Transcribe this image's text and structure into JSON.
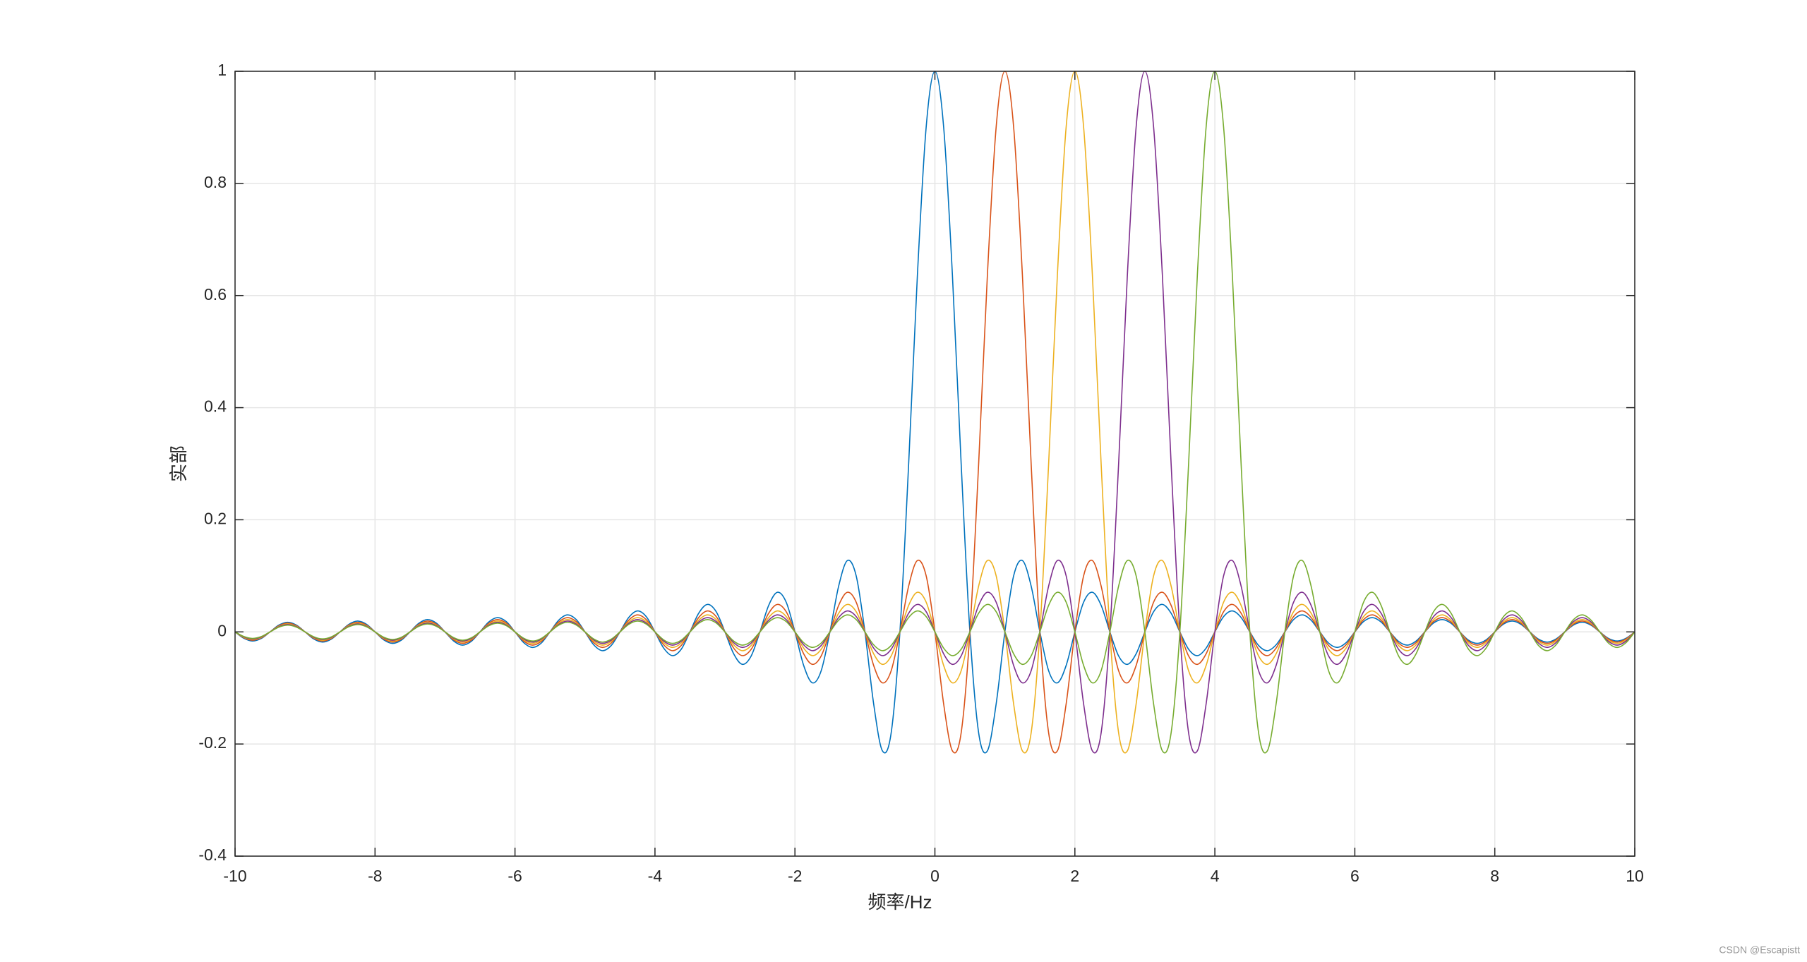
{
  "chart_data": {
    "type": "line",
    "x_label": "频率/Hz",
    "y_label": "实部",
    "watermark": "CSDN @Escapistt",
    "xlim": [
      -10,
      10
    ],
    "ylim": [
      -0.4,
      1
    ],
    "xticks": [
      -10,
      -8,
      -6,
      -4,
      -2,
      0,
      2,
      4,
      6,
      8,
      10
    ],
    "yticks": [
      -0.4,
      -0.2,
      0,
      0.2,
      0.4,
      0.6,
      0.8,
      1
    ],
    "grid": true,
    "box": true,
    "x": [
      -10,
      -9.875,
      -9.75,
      -9.625,
      -9.5,
      -9.375,
      -9.25,
      -9.125,
      -9,
      -8.875,
      -8.75,
      -8.625,
      -8.5,
      -8.375,
      -8.25,
      -8.125,
      -8,
      -7.875,
      -7.75,
      -7.625,
      -7.5,
      -7.375,
      -7.25,
      -7.125,
      -7,
      -6.875,
      -6.75,
      -6.625,
      -6.5,
      -6.375,
      -6.25,
      -6.125,
      -6,
      -5.875,
      -5.75,
      -5.625,
      -5.5,
      -5.375,
      -5.25,
      -5.125,
      -5,
      -4.875,
      -4.75,
      -4.625,
      -4.5,
      -4.375,
      -4.25,
      -4.125,
      -4,
      -3.875,
      -3.75,
      -3.625,
      -3.5,
      -3.375,
      -3.25,
      -3.125,
      -3,
      -2.875,
      -2.75,
      -2.625,
      -2.5,
      -2.375,
      -2.25,
      -2.125,
      -2,
      -1.875,
      -1.75,
      -1.625,
      -1.5,
      -1.375,
      -1.25,
      -1.125,
      -1,
      -0.875,
      -0.75,
      -0.625,
      -0.5,
      -0.375,
      -0.25,
      -0.125,
      0,
      0.125,
      0.25,
      0.375,
      0.5,
      0.625,
      0.75,
      0.875,
      1,
      1.125,
      1.25,
      1.375,
      1.5,
      1.625,
      1.75,
      1.875,
      2,
      2.125,
      2.25,
      2.375,
      2.5,
      2.625,
      2.75,
      2.875,
      3,
      3.125,
      3.25,
      3.375,
      3.5,
      3.625,
      3.75,
      3.875,
      4,
      4.125,
      4.25,
      4.375,
      4.5,
      4.625,
      4.75,
      4.875,
      5,
      5.125,
      5.25,
      5.375,
      5.5,
      5.625,
      5.75,
      5.875,
      6,
      6.125,
      6.25,
      6.375,
      6.5,
      6.625,
      6.75,
      6.875,
      7,
      7.125,
      7.25,
      7.375,
      7.5,
      7.625,
      7.75,
      7.875,
      8,
      8.125,
      8.25,
      8.375,
      8.5,
      8.625,
      8.75,
      8.875,
      9,
      9.125,
      9.25,
      9.375,
      9.5,
      9.625,
      9.75,
      9.875,
      10
    ],
    "series": [
      {
        "color": "#0072BD",
        "values": [
          0,
          -0.0114,
          -0.0163,
          -0.0117,
          0,
          0.012,
          0.0172,
          0.0123,
          0,
          -0.0127,
          -0.0182,
          -0.013,
          0,
          0.0134,
          0.0193,
          0.0139,
          0,
          -0.0143,
          -0.0205,
          -0.0148,
          0,
          0.0153,
          0.022,
          0.0158,
          0,
          -0.0164,
          -0.0236,
          -0.017,
          0,
          0.0177,
          0.0255,
          0.0184,
          0,
          -0.0192,
          -0.0277,
          -0.02,
          0,
          0.0209,
          0.0303,
          0.022,
          0,
          -0.0231,
          -0.0335,
          -0.0243,
          0,
          0.0257,
          0.0374,
          0.0273,
          0,
          -0.029,
          -0.0424,
          -0.031,
          0,
          0.0333,
          0.049,
          0.036,
          0,
          -0.0391,
          -0.0579,
          -0.0429,
          0,
          0.0474,
          0.0707,
          0.053,
          0,
          -0.06,
          -0.0909,
          -0.0693,
          0,
          0.0818,
          0.1273,
          0.1,
          0,
          -0.1286,
          -0.2122,
          -0.1801,
          0,
          0.3001,
          0.6366,
          0.9003,
          1,
          0.9003,
          0.6366,
          0.3001,
          0,
          -0.1801,
          -0.2122,
          -0.1286,
          0,
          0.1,
          0.1273,
          0.0818,
          0,
          -0.0693,
          -0.0909,
          -0.06,
          0,
          0.053,
          0.0707,
          0.0474,
          0,
          -0.0429,
          -0.0579,
          -0.0391,
          0,
          0.036,
          0.049,
          0.0333,
          0,
          -0.031,
          -0.0424,
          -0.029,
          0,
          0.0273,
          0.0374,
          0.0257,
          0,
          -0.0243,
          -0.0335,
          -0.0231,
          0,
          0.022,
          0.0303,
          0.0209,
          0,
          -0.02,
          -0.0277,
          -0.0192,
          0,
          0.0184,
          0.0255,
          0.0177,
          0,
          -0.017,
          -0.0236,
          -0.0164,
          0,
          0.0158,
          0.022,
          0.0153,
          0,
          -0.0148,
          -0.0205,
          -0.0143,
          0,
          0.0139,
          0.0193,
          0.0134,
          0,
          -0.013,
          -0.0182,
          -0.0127,
          0,
          0.0123,
          0.0172,
          0.012,
          0,
          -0.0117,
          -0.0163,
          -0.0114,
          0
        ]
      },
      {
        "color": "#D95319",
        "values": [
          0,
          -0.0103,
          -0.0148,
          -0.0106,
          0,
          0.0108,
          0.0155,
          0.0111,
          0,
          -0.0114,
          -0.0163,
          -0.0117,
          0,
          0.012,
          0.0172,
          0.0123,
          0,
          -0.0127,
          -0.0182,
          -0.013,
          0,
          0.0134,
          0.0193,
          0.0139,
          0,
          -0.0143,
          -0.0205,
          -0.0148,
          0,
          0.0153,
          0.022,
          0.0158,
          0,
          -0.0164,
          -0.0236,
          -0.017,
          0,
          0.0177,
          0.0255,
          0.0184,
          0,
          -0.0192,
          -0.0277,
          -0.02,
          0,
          0.0209,
          0.0303,
          0.022,
          0,
          -0.0231,
          -0.0335,
          -0.0243,
          0,
          0.0257,
          0.0374,
          0.0273,
          0,
          -0.029,
          -0.0424,
          -0.031,
          0,
          0.0333,
          0.049,
          0.036,
          0,
          -0.0391,
          -0.0579,
          -0.0429,
          0,
          0.0474,
          0.0707,
          0.053,
          0,
          -0.06,
          -0.0909,
          -0.0693,
          0,
          0.0818,
          0.1273,
          0.1,
          0,
          -0.1286,
          -0.2122,
          -0.1801,
          0,
          0.3001,
          0.6366,
          0.9003,
          1,
          0.9003,
          0.6366,
          0.3001,
          0,
          -0.1801,
          -0.2122,
          -0.1286,
          0,
          0.1,
          0.1273,
          0.0818,
          0,
          -0.0693,
          -0.0909,
          -0.06,
          0,
          0.053,
          0.0707,
          0.0474,
          0,
          -0.0429,
          -0.0579,
          -0.0391,
          0,
          0.036,
          0.049,
          0.0333,
          0,
          -0.031,
          -0.0424,
          -0.029,
          0,
          0.0273,
          0.0374,
          0.0257,
          0,
          -0.0243,
          -0.0335,
          -0.0231,
          0,
          0.022,
          0.0303,
          0.0209,
          0,
          -0.02,
          -0.0277,
          -0.0192,
          0,
          0.0184,
          0.0255,
          0.0177,
          0,
          -0.017,
          -0.0236,
          -0.0164,
          0,
          0.0158,
          0.022,
          0.0153,
          0,
          -0.0148,
          -0.0205,
          -0.0143,
          0,
          0.0139,
          0.0193,
          0.0134,
          0,
          -0.013,
          -0.0182,
          -0.0127,
          0
        ]
      },
      {
        "color": "#EDB120",
        "values": [
          0,
          -0.0095,
          -0.0135,
          -0.0097,
          0,
          0.0099,
          0.0141,
          0.0101,
          0,
          -0.0103,
          -0.0148,
          -0.0106,
          0,
          0.0108,
          0.0155,
          0.0111,
          0,
          -0.0114,
          -0.0163,
          -0.0117,
          0,
          0.012,
          0.0172,
          0.0123,
          0,
          -0.0127,
          -0.0182,
          -0.013,
          0,
          0.0134,
          0.0193,
          0.0139,
          0,
          -0.0143,
          -0.0205,
          -0.0148,
          0,
          0.0153,
          0.022,
          0.0158,
          0,
          -0.0164,
          -0.0236,
          -0.017,
          0,
          0.0177,
          0.0255,
          0.0184,
          0,
          -0.0192,
          -0.0277,
          -0.02,
          0,
          0.0209,
          0.0303,
          0.022,
          0,
          -0.0231,
          -0.0335,
          -0.0243,
          0,
          0.0257,
          0.0374,
          0.0273,
          0,
          -0.029,
          -0.0424,
          -0.031,
          0,
          0.0333,
          0.049,
          0.036,
          0,
          -0.0391,
          -0.0579,
          -0.0429,
          0,
          0.0474,
          0.0707,
          0.053,
          0,
          -0.06,
          -0.0909,
          -0.0693,
          0,
          0.0818,
          0.1273,
          0.1,
          0,
          -0.1286,
          -0.2122,
          -0.1801,
          0,
          0.3001,
          0.6366,
          0.9003,
          1,
          0.9003,
          0.6366,
          0.3001,
          0,
          -0.1801,
          -0.2122,
          -0.1286,
          0,
          0.1,
          0.1273,
          0.0818,
          0,
          -0.0693,
          -0.0909,
          -0.06,
          0,
          0.053,
          0.0707,
          0.0474,
          0,
          -0.0429,
          -0.0579,
          -0.0391,
          0,
          0.036,
          0.049,
          0.0333,
          0,
          -0.031,
          -0.0424,
          -0.029,
          0,
          0.0273,
          0.0374,
          0.0257,
          0,
          -0.0243,
          -0.0335,
          -0.0231,
          0,
          0.022,
          0.0303,
          0.0209,
          0,
          -0.02,
          -0.0277,
          -0.0192,
          0,
          0.0184,
          0.0255,
          0.0177,
          0,
          -0.017,
          -0.0236,
          -0.0164,
          0,
          0.0158,
          0.022,
          0.0153,
          0,
          -0.0148,
          -0.0205,
          -0.0143,
          0
        ]
      },
      {
        "color": "#7E2F8E",
        "values": [
          0,
          -0.0087,
          -0.0125,
          -0.0089,
          0,
          0.0091,
          0.013,
          0.0093,
          0,
          -0.0095,
          -0.0135,
          -0.0097,
          0,
          0.0099,
          0.0141,
          0.0101,
          0,
          -0.0103,
          -0.0148,
          -0.0106,
          0,
          0.0108,
          0.0155,
          0.0111,
          0,
          -0.0114,
          -0.0163,
          -0.0117,
          0,
          0.012,
          0.0172,
          0.0123,
          0,
          -0.0127,
          -0.0182,
          -0.013,
          0,
          0.0134,
          0.0193,
          0.0139,
          0,
          -0.0143,
          -0.0205,
          -0.0148,
          0,
          0.0153,
          0.022,
          0.0158,
          0,
          -0.0164,
          -0.0236,
          -0.017,
          0,
          0.0177,
          0.0255,
          0.0184,
          0,
          -0.0192,
          -0.0277,
          -0.02,
          0,
          0.0209,
          0.0303,
          0.022,
          0,
          -0.0231,
          -0.0335,
          -0.0243,
          0,
          0.0257,
          0.0374,
          0.0273,
          0,
          -0.029,
          -0.0424,
          -0.031,
          0,
          0.0333,
          0.049,
          0.036,
          0,
          -0.0391,
          -0.0579,
          -0.0429,
          0,
          0.0474,
          0.0707,
          0.053,
          0,
          -0.06,
          -0.0909,
          -0.0693,
          0,
          0.0818,
          0.1273,
          0.1,
          0,
          -0.1286,
          -0.2122,
          -0.1801,
          0,
          0.3001,
          0.6366,
          0.9003,
          1,
          0.9003,
          0.6366,
          0.3001,
          0,
          -0.1801,
          -0.2122,
          -0.1286,
          0,
          0.1,
          0.1273,
          0.0818,
          0,
          -0.0693,
          -0.0909,
          -0.06,
          0,
          0.053,
          0.0707,
          0.0474,
          0,
          -0.0429,
          -0.0579,
          -0.0391,
          0,
          0.036,
          0.049,
          0.0333,
          0,
          -0.031,
          -0.0424,
          -0.029,
          0,
          0.0273,
          0.0374,
          0.0257,
          0,
          -0.0243,
          -0.0335,
          -0.0231,
          0,
          0.022,
          0.0303,
          0.0209,
          0,
          -0.02,
          -0.0277,
          -0.0192,
          0,
          0.0184,
          0.0255,
          0.0177,
          0,
          -0.017,
          -0.0236,
          -0.0164,
          0
        ]
      },
      {
        "color": "#77AC30",
        "values": [
          0,
          -0.0081,
          -0.0116,
          -0.0083,
          0,
          0.0084,
          0.012,
          0.0086,
          0,
          -0.0087,
          -0.0125,
          -0.0089,
          0,
          0.0091,
          0.013,
          0.0093,
          0,
          -0.0095,
          -0.0135,
          -0.0097,
          0,
          0.0099,
          0.0141,
          0.0101,
          0,
          -0.0103,
          -0.0148,
          -0.0106,
          0,
          0.0108,
          0.0155,
          0.0111,
          0,
          -0.0114,
          -0.0163,
          -0.0117,
          0,
          0.012,
          0.0172,
          0.0123,
          0,
          -0.0127,
          -0.0182,
          -0.013,
          0,
          0.0134,
          0.0193,
          0.0139,
          0,
          -0.0143,
          -0.0205,
          -0.0148,
          0,
          0.0153,
          0.022,
          0.0158,
          0,
          -0.0164,
          -0.0236,
          -0.017,
          0,
          0.0177,
          0.0255,
          0.0184,
          0,
          -0.0192,
          -0.0277,
          -0.02,
          0,
          0.0209,
          0.0303,
          0.022,
          0,
          -0.0231,
          -0.0335,
          -0.0243,
          0,
          0.0257,
          0.0374,
          0.0273,
          0,
          -0.029,
          -0.0424,
          -0.031,
          0,
          0.0333,
          0.049,
          0.036,
          0,
          -0.0391,
          -0.0579,
          -0.0429,
          0,
          0.0474,
          0.0707,
          0.053,
          0,
          -0.06,
          -0.0909,
          -0.0693,
          0,
          0.0818,
          0.1273,
          0.1,
          0,
          -0.1286,
          -0.2122,
          -0.1801,
          0,
          0.3001,
          0.6366,
          0.9003,
          1,
          0.9003,
          0.6366,
          0.3001,
          0,
          -0.1801,
          -0.2122,
          -0.1286,
          0,
          0.1,
          0.1273,
          0.0818,
          0,
          -0.0693,
          -0.0909,
          -0.06,
          0,
          0.053,
          0.0707,
          0.0474,
          0,
          -0.0429,
          -0.0579,
          -0.0391,
          0,
          0.036,
          0.049,
          0.0333,
          0,
          -0.031,
          -0.0424,
          -0.029,
          0,
          0.0273,
          0.0374,
          0.0257,
          0,
          -0.0243,
          -0.0335,
          -0.0231,
          0,
          0.022,
          0.0303,
          0.0209,
          0,
          -0.02,
          -0.0277,
          -0.0192,
          0
        ]
      }
    ]
  }
}
